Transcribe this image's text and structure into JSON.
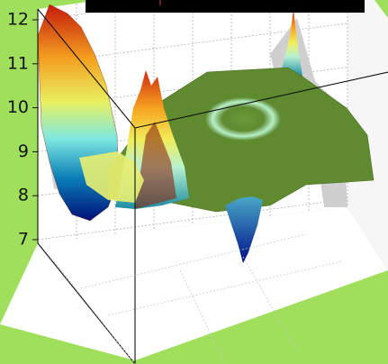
{
  "chart_data": {
    "type": "surface",
    "title": "",
    "xlabel": "",
    "ylabel": "",
    "zlabel": "",
    "zlim": [
      7,
      12
    ],
    "z_ticks": [
      7,
      8,
      9,
      10,
      11,
      12
    ],
    "grid": true,
    "colormap": "jet",
    "surface_features": {
      "background_level": 8.8,
      "left_ridge_peak": 12,
      "back_right_spike_peak": 11.5,
      "central_ridge_peak": 10.6,
      "deep_trough_min": 7.2,
      "ring_crater_level": 9.5
    }
  },
  "colors": {
    "background": "#9fdf5c",
    "plane": "#5f8a30",
    "axes": "#111111",
    "title_bar": "#000000"
  }
}
